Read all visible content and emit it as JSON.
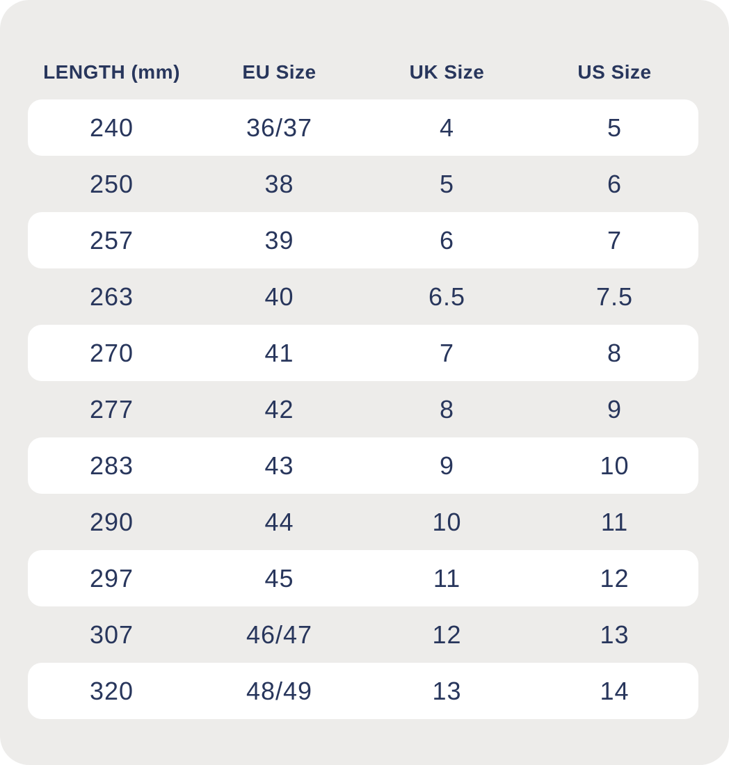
{
  "chart_data": {
    "type": "table",
    "headers": [
      "LENGTH (mm)",
      "EU Size",
      "UK Size",
      "US Size"
    ],
    "rows": [
      [
        "240",
        "36/37",
        "4",
        "5"
      ],
      [
        "250",
        "38",
        "5",
        "6"
      ],
      [
        "257",
        "39",
        "6",
        "7"
      ],
      [
        "263",
        "40",
        "6.5",
        "7.5"
      ],
      [
        "270",
        "41",
        "7",
        "8"
      ],
      [
        "277",
        "42",
        "8",
        "9"
      ],
      [
        "283",
        "43",
        "9",
        "10"
      ],
      [
        "290",
        "44",
        "10",
        "11"
      ],
      [
        "297",
        "45",
        "11",
        "12"
      ],
      [
        "307",
        "46/47",
        "12",
        "13"
      ],
      [
        "320",
        "48/49",
        "13",
        "14"
      ]
    ],
    "layout": {
      "row_style": "alternating, odd rows highlighted white pills",
      "alignment": "center"
    }
  },
  "colors": {
    "page_background": "#ffffff",
    "panel_background": "#edecea",
    "row_highlight": "#ffffff",
    "text": "#28365c"
  }
}
